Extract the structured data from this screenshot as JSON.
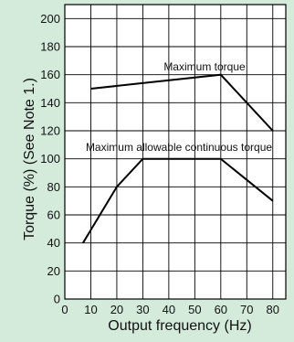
{
  "chart_data": {
    "type": "line",
    "xlabel": "Output frequency (Hz)",
    "ylabel": "Torque (%) (See Note 1.)",
    "xlim": [
      0,
      85
    ],
    "ylim": [
      0,
      210
    ],
    "x_ticks": [
      0,
      10,
      20,
      30,
      40,
      50,
      60,
      70,
      80
    ],
    "y_ticks": [
      0,
      20,
      40,
      60,
      80,
      100,
      120,
      140,
      160,
      180,
      200
    ],
    "grid": true,
    "legend": "none",
    "series": [
      {
        "name": "Maximum torque",
        "color": "#000000",
        "points": [
          [
            10,
            150
          ],
          [
            60,
            160
          ],
          [
            80,
            120
          ]
        ]
      },
      {
        "name": "Maximum allowable continuous torque",
        "color": "#000000",
        "points": [
          [
            7,
            40
          ],
          [
            20,
            80
          ],
          [
            30,
            100
          ],
          [
            60,
            100
          ],
          [
            80,
            70
          ]
        ]
      }
    ]
  }
}
